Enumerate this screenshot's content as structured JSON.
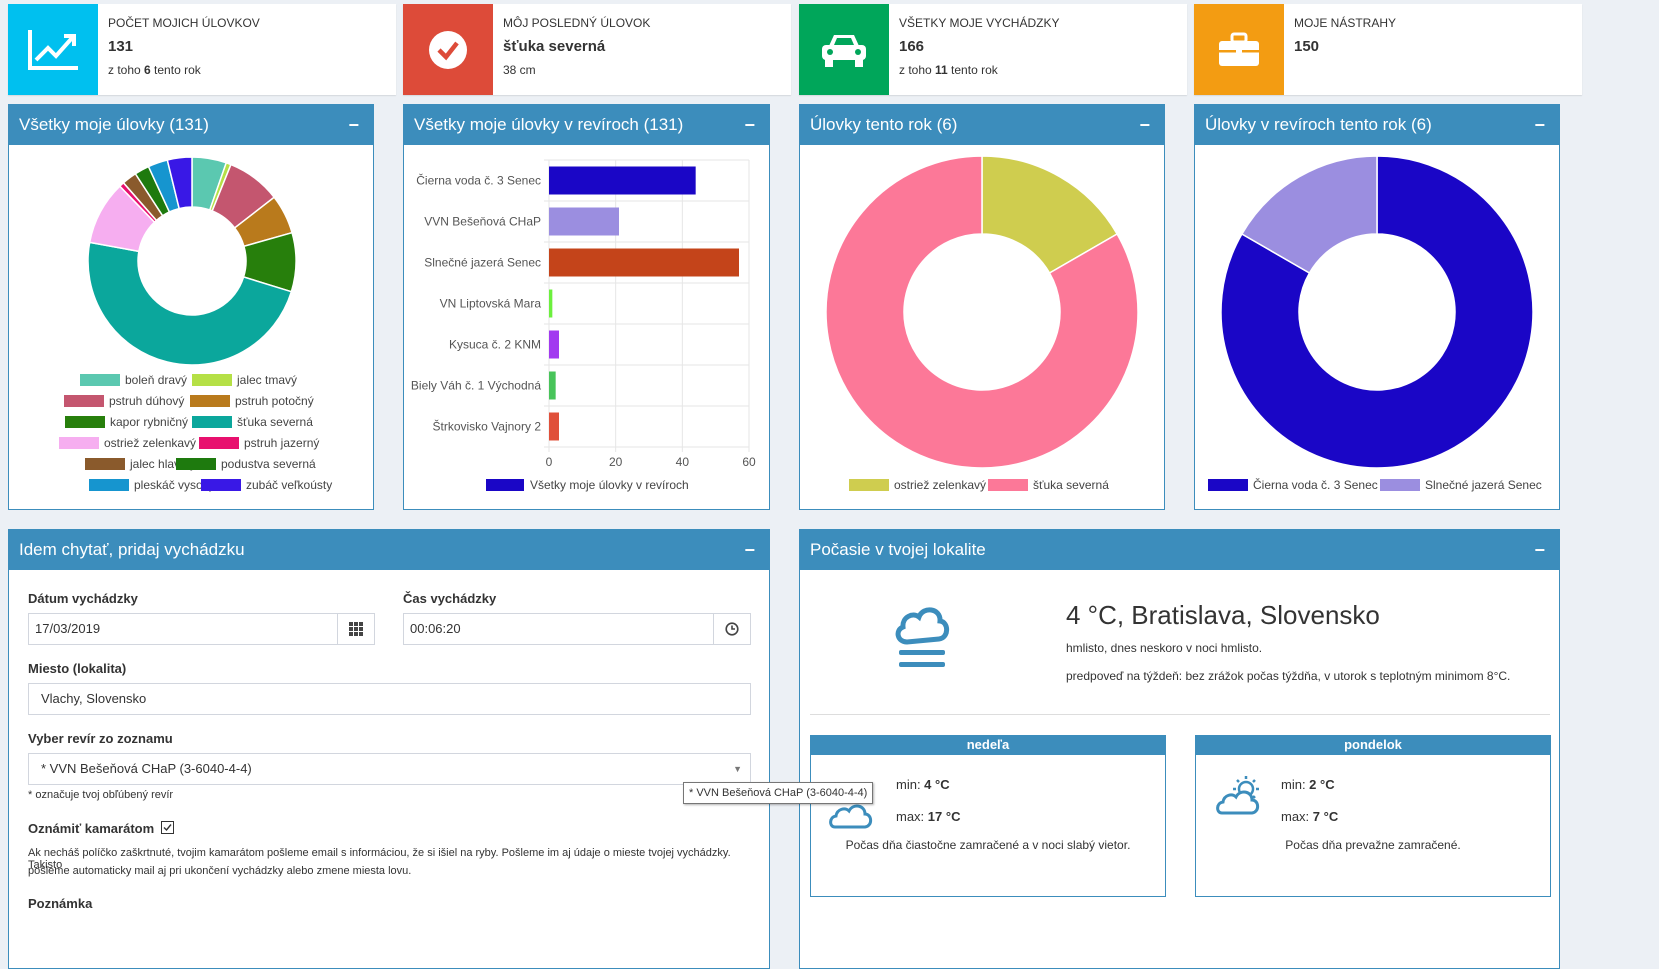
{
  "info_boxes": [
    {
      "label": "Počet mojich úlovkov",
      "value": "131",
      "sub_pre": "z toho ",
      "sub_bold": "6",
      "sub_post": " tento rok",
      "color": "#00c0ef",
      "icon": "line-chart-icon"
    },
    {
      "label": "Môj posledný úlovok",
      "value": "šťuka severná",
      "sub_pre": "38 cm",
      "sub_bold": "",
      "sub_post": "",
      "color": "#dd4b39",
      "icon": "check-circle-icon"
    },
    {
      "label": "Všetky moje vychádzky",
      "value": "166",
      "sub_pre": "z toho ",
      "sub_bold": "11",
      "sub_post": " tento rok",
      "color": "#00a65a",
      "icon": "car-icon"
    },
    {
      "label": "Moje nástrahy",
      "value": "150",
      "sub_pre": "",
      "sub_bold": "",
      "sub_post": "",
      "color": "#f39c12",
      "icon": "briefcase-icon"
    }
  ],
  "panels": {
    "p1": {
      "title": "Všetky moje úlovky (131)",
      "min": "−"
    },
    "p2": {
      "title": "Všetky moje úlovky v revíroch (131)",
      "min": "−"
    },
    "p3": {
      "title": "Úlovky tento rok (6)",
      "min": "−"
    },
    "p4": {
      "title": "Úlovky v revíroch tento rok (6)",
      "min": "−"
    },
    "p5": {
      "title": "Idem chytať, pridaj vychádzku",
      "min": "−"
    },
    "p6": {
      "title": "Počasie v tvojej lokalite",
      "min": "−"
    }
  },
  "chart_data": [
    {
      "type": "pie",
      "variant": "doughnut",
      "title": "Všetky moje úlovky (131)",
      "legend": "bottom",
      "labels": [
        "boleň dravý",
        "jalec tmavý",
        "pstruh dúhový",
        "pstruh potočný",
        "kapor rybničný",
        "šťuka severná",
        "ostriež zelenkavý",
        "pstruh jazerný",
        "jalec hlavatý",
        "podustva severná",
        "pleskáč vysoký",
        "zubáč veľkoústy"
      ],
      "values": [
        7,
        1,
        11,
        8,
        12,
        63,
        13,
        1,
        3,
        3,
        4,
        5
      ],
      "colors": [
        "#5bc8b0",
        "#b5e046",
        "#c4566f",
        "#b97a1c",
        "#277f0c",
        "#0ba79c",
        "#f6aef0",
        "#e8106e",
        "#8a5a2c",
        "#1e7a0e",
        "#1695cf",
        "#3918e6"
      ]
    },
    {
      "type": "bar",
      "orientation": "horizontal",
      "title": "Všetky moje úlovky v revíroch (131)",
      "categories": [
        "Čierna voda č. 3 Senec",
        "VVN Bešeňová CHaP",
        "Slnečné jazerá Senec",
        "VN Liptovská Mara",
        "Kysuca č. 2 KNM",
        "Biely Váh č. 1 Východná",
        "Štrkovisko Vajnory 2"
      ],
      "series": [
        {
          "name": "Všetky moje úlovky v revíroch",
          "values": [
            44,
            21,
            57,
            1,
            3,
            2,
            3
          ]
        }
      ],
      "colors": [
        "#1a06c6",
        "#9b8ee0",
        "#c4441a",
        "#6cf03e",
        "#a23af0",
        "#48c45a",
        "#e0503a"
      ],
      "xlim": [
        0,
        60
      ],
      "xticks": [
        "0",
        "20",
        "40",
        "60"
      ],
      "grid": true,
      "legend": "bottom"
    },
    {
      "type": "pie",
      "variant": "doughnut",
      "title": "Úlovky tento rok (6)",
      "labels": [
        "ostriež zelenkavý",
        "šťuka severná"
      ],
      "values": [
        1,
        5
      ],
      "colors": [
        "#cfcd4f",
        "#fc7898"
      ],
      "legend": "bottom"
    },
    {
      "type": "pie",
      "variant": "doughnut",
      "title": "Úlovky v revíroch tento rok (6)",
      "labels": [
        "Čierna voda č. 3 Senec",
        "Slnečné jazerá Senec"
      ],
      "values": [
        5,
        1
      ],
      "colors": [
        "#1a06c6",
        "#9b8ee0"
      ],
      "legend": "bottom"
    }
  ],
  "form": {
    "date_label": "Dátum vychádzky",
    "date_value": "17/03/2019",
    "time_label": "Čas vychádzky",
    "time_value": "00:06:20",
    "place_label": "Miesto (lokalita)",
    "place_value": "Vlachy, Slovensko",
    "revir_label": "Vyber revír zo zoznamu",
    "revir_value": "* VVN Bešeňová CHaP (3-6040-4-4)",
    "revir_note": "* označuje tvoj obľúbený revír",
    "tooltip": "* VVN Bešeňová CHaP (3-6040-4-4)",
    "notify_label": "Oznámiť kamarátom",
    "notify_text_1": "Ak necháš políčko zaškrtnuté, tvojim kamarátom pošleme email s informáciou, že si išiel na ryby. Pošleme im aj údaje o mieste tvojej vychádzky. Takisto",
    "notify_text_2": "pošleme automaticky mail aj pri ukončení vychádzky alebo zmene miesta lovu.",
    "cut_label": "Poznámka"
  },
  "weather": {
    "headline": "4 °C, Bratislava, Slovensko",
    "line1": "hmlisto, dnes neskoro v noci hmlisto.",
    "line2": "predpoveď na týždeň: bez zrážok počas týždňa, v utorok s teplotným minimom 8°C.",
    "days": [
      {
        "name": "nedeľa",
        "min_label": "min: ",
        "min": "4 °C",
        "max_label": "max: ",
        "max": "17 °C",
        "desc": "Počas dňa čiastočne zamračené a v noci slabý vietor."
      },
      {
        "name": "pondelok",
        "min_label": "min: ",
        "min": "2 °C",
        "max_label": "max: ",
        "max": "7 °C",
        "desc": "Počas dňa prevažne zamračené."
      }
    ]
  }
}
